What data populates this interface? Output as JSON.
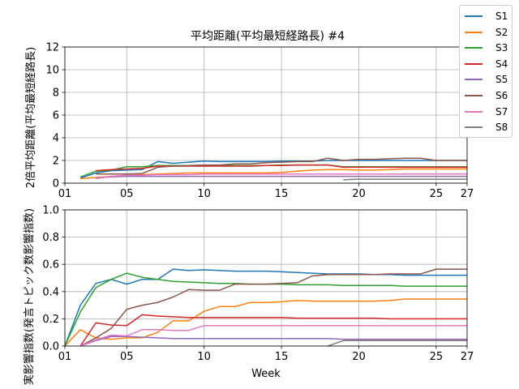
{
  "figure": {
    "title": "平均距離(平均最短経路長) #4",
    "legend": [
      {
        "name": "S1",
        "color": "#1f77b4"
      },
      {
        "name": "S2",
        "color": "#ff7f0e"
      },
      {
        "name": "S3",
        "color": "#2ca02c"
      },
      {
        "name": "S4",
        "color": "#d62728"
      },
      {
        "name": "S5",
        "color": "#9467bd"
      },
      {
        "name": "S6",
        "color": "#8c564b"
      },
      {
        "name": "S7",
        "color": "#e377c2"
      },
      {
        "name": "S8",
        "color": "#7f7f7f"
      }
    ]
  },
  "chart_data": [
    {
      "type": "line",
      "title": "平均距離(平均最短経路長) #4",
      "ylabel": "2倍平均距離(平均最短経路長)",
      "xlabel": "",
      "xlim": [
        1,
        27
      ],
      "ylim": [
        0,
        12
      ],
      "xticks": [
        1,
        5,
        10,
        15,
        20,
        25,
        27
      ],
      "xtick_labels": [
        "01",
        "05",
        "10",
        "15",
        "20",
        "25",
        "27"
      ],
      "yticks": [
        0,
        2,
        4,
        6,
        8,
        10,
        12
      ],
      "ytick_labels": [
        "0",
        "2",
        "4",
        "6",
        "8",
        "10",
        "12"
      ],
      "grid": true,
      "legend_position": "top-right, outside",
      "series": [
        {
          "name": "S1",
          "color": "#1f77b4",
          "x": [
            2,
            3,
            4,
            5,
            6,
            7,
            8,
            9,
            10,
            11,
            12,
            13,
            14,
            15,
            16,
            17,
            18,
            19,
            20,
            21,
            22,
            23,
            24,
            25,
            26,
            27
          ],
          "values": [
            0.45,
            0.9,
            1.1,
            1.15,
            1.2,
            1.9,
            1.75,
            1.85,
            1.95,
            1.9,
            1.9,
            1.9,
            1.9,
            1.95,
            1.95,
            1.95,
            2.0,
            2.0,
            2.0,
            2.0,
            2.0,
            2.0,
            2.0,
            2.0,
            2.0,
            2.0
          ]
        },
        {
          "name": "S2",
          "color": "#ff7f0e",
          "x": [
            2,
            3,
            4,
            5,
            6,
            7,
            8,
            9,
            10,
            11,
            12,
            13,
            14,
            15,
            16,
            17,
            18,
            19,
            20,
            21,
            22,
            23,
            24,
            25,
            26,
            27
          ],
          "values": [
            0.4,
            0.5,
            0.6,
            0.7,
            0.75,
            0.8,
            0.85,
            0.9,
            0.9,
            0.9,
            0.9,
            0.9,
            0.9,
            0.95,
            1.05,
            1.15,
            1.2,
            1.2,
            1.15,
            1.15,
            1.2,
            1.25,
            1.25,
            1.25,
            1.25,
            1.25
          ]
        },
        {
          "name": "S3",
          "color": "#2ca02c",
          "x": [
            2,
            3,
            4,
            5,
            6,
            7,
            8,
            9,
            10,
            11,
            12,
            13,
            14,
            15,
            16,
            17,
            18,
            19,
            20,
            21,
            22,
            23,
            24,
            25,
            26,
            27
          ],
          "values": [
            0.55,
            1.05,
            1.15,
            1.45,
            1.45,
            1.55,
            1.55,
            1.55,
            1.55,
            1.55,
            1.55,
            1.55,
            1.55,
            1.6,
            1.6,
            1.6,
            1.6,
            1.45,
            1.45,
            1.45,
            1.45,
            1.45,
            1.45,
            1.45,
            1.45,
            1.45
          ]
        },
        {
          "name": "S4",
          "color": "#d62728",
          "x": [
            3,
            4,
            5,
            6,
            7,
            8,
            9,
            10,
            11,
            12,
            13,
            14,
            15,
            16,
            17,
            18,
            19,
            20,
            21,
            22,
            23,
            24,
            25,
            26,
            27
          ],
          "values": [
            1.1,
            1.2,
            1.25,
            1.3,
            1.5,
            1.5,
            1.5,
            1.5,
            1.5,
            1.5,
            1.5,
            1.55,
            1.55,
            1.6,
            1.6,
            1.6,
            1.4,
            1.4,
            1.4,
            1.4,
            1.4,
            1.4,
            1.4,
            1.4,
            1.4
          ]
        },
        {
          "name": "S5",
          "color": "#9467bd",
          "x": [
            3,
            4,
            5,
            6,
            7,
            8,
            9,
            10,
            11,
            12,
            13,
            14,
            15,
            16,
            17,
            18,
            19,
            20,
            21,
            22,
            23,
            24,
            25,
            26,
            27
          ],
          "values": [
            0.45,
            0.55,
            0.6,
            0.6,
            0.6,
            0.6,
            0.6,
            0.6,
            0.6,
            0.6,
            0.6,
            0.6,
            0.6,
            0.6,
            0.6,
            0.6,
            0.6,
            0.6,
            0.6,
            0.6,
            0.6,
            0.6,
            0.6,
            0.6,
            0.6
          ]
        },
        {
          "name": "S6",
          "color": "#8c564b",
          "x": [
            3,
            4,
            5,
            6,
            7,
            8,
            9,
            10,
            11,
            12,
            13,
            14,
            15,
            16,
            17,
            18,
            19,
            20,
            21,
            22,
            23,
            24,
            25,
            26,
            27
          ],
          "values": [
            0.8,
            0.8,
            0.8,
            0.85,
            1.4,
            1.5,
            1.55,
            1.6,
            1.6,
            1.7,
            1.7,
            1.8,
            1.85,
            1.9,
            1.9,
            2.2,
            2.0,
            2.1,
            2.1,
            2.15,
            2.2,
            2.2,
            2.0,
            2.0,
            2.0
          ]
        },
        {
          "name": "S7",
          "color": "#e377c2",
          "x": [
            3,
            4,
            5,
            6,
            7,
            8,
            9,
            10,
            11,
            12,
            13,
            14,
            15,
            16,
            17,
            18,
            19,
            20,
            21,
            22,
            23,
            24,
            25,
            26,
            27
          ],
          "values": [
            0.4,
            0.6,
            0.7,
            0.7,
            0.75,
            0.75,
            0.75,
            0.8,
            0.8,
            0.8,
            0.8,
            0.8,
            0.8,
            0.8,
            0.8,
            0.8,
            0.8,
            0.8,
            0.8,
            0.8,
            0.8,
            0.8,
            0.8,
            0.8,
            0.8
          ]
        },
        {
          "name": "S8",
          "color": "#7f7f7f",
          "x": [
            19,
            20,
            21,
            22,
            23,
            24,
            25,
            26,
            27
          ],
          "values": [
            0.3,
            0.35,
            0.35,
            0.35,
            0.35,
            0.35,
            0.35,
            0.35,
            0.35
          ]
        }
      ]
    },
    {
      "type": "line",
      "title": "",
      "ylabel": "実影響指数(発言トピック数影響指数)",
      "xlabel": "Week",
      "xlim": [
        1,
        27
      ],
      "ylim": [
        0,
        1.0
      ],
      "xticks": [
        1,
        5,
        10,
        15,
        20,
        25,
        27
      ],
      "xtick_labels": [
        "01",
        "05",
        "10",
        "15",
        "20",
        "25",
        "27"
      ],
      "yticks": [
        0,
        0.2,
        0.4,
        0.6,
        0.8,
        1.0
      ],
      "ytick_labels": [
        "0.0",
        "0.2",
        "0.4",
        "0.6",
        "0.8",
        "1.0"
      ],
      "grid": true,
      "series": [
        {
          "name": "S1",
          "color": "#1f77b4",
          "x": [
            1,
            2,
            3,
            4,
            5,
            6,
            7,
            8,
            9,
            10,
            11,
            12,
            13,
            14,
            15,
            16,
            17,
            18,
            19,
            20,
            21,
            22,
            23,
            24,
            25,
            26,
            27
          ],
          "values": [
            0.0,
            0.3,
            0.46,
            0.49,
            0.455,
            0.49,
            0.49,
            0.565,
            0.555,
            0.56,
            0.555,
            0.55,
            0.55,
            0.55,
            0.545,
            0.54,
            0.535,
            0.53,
            0.53,
            0.53,
            0.525,
            0.525,
            0.52,
            0.52,
            0.52,
            0.52,
            0.52
          ]
        },
        {
          "name": "S2",
          "color": "#ff7f0e",
          "x": [
            1,
            2,
            3,
            4,
            5,
            6,
            7,
            8,
            9,
            10,
            11,
            12,
            13,
            14,
            15,
            16,
            17,
            18,
            19,
            20,
            21,
            22,
            23,
            24,
            25,
            26,
            27
          ],
          "values": [
            0.0,
            0.12,
            0.06,
            0.05,
            0.06,
            0.06,
            0.1,
            0.185,
            0.185,
            0.255,
            0.29,
            0.29,
            0.32,
            0.32,
            0.325,
            0.335,
            0.33,
            0.33,
            0.33,
            0.33,
            0.33,
            0.335,
            0.345,
            0.345,
            0.345,
            0.345,
            0.345
          ]
        },
        {
          "name": "S3",
          "color": "#2ca02c",
          "x": [
            1,
            2,
            3,
            4,
            5,
            6,
            7,
            8,
            9,
            10,
            11,
            12,
            13,
            14,
            15,
            16,
            17,
            18,
            19,
            20,
            21,
            22,
            23,
            24,
            25,
            26,
            27
          ],
          "values": [
            0.0,
            0.25,
            0.43,
            0.49,
            0.535,
            0.505,
            0.49,
            0.475,
            0.47,
            0.465,
            0.46,
            0.46,
            0.455,
            0.455,
            0.455,
            0.45,
            0.45,
            0.45,
            0.445,
            0.445,
            0.445,
            0.445,
            0.44,
            0.44,
            0.44,
            0.44,
            0.44
          ]
        },
        {
          "name": "S4",
          "color": "#d62728",
          "x": [
            2,
            3,
            4,
            5,
            6,
            7,
            8,
            9,
            10,
            11,
            12,
            13,
            14,
            15,
            16,
            17,
            18,
            19,
            20,
            21,
            22,
            23,
            24,
            25,
            26,
            27
          ],
          "values": [
            0.0,
            0.17,
            0.155,
            0.15,
            0.23,
            0.22,
            0.215,
            0.21,
            0.21,
            0.21,
            0.21,
            0.21,
            0.21,
            0.21,
            0.205,
            0.205,
            0.205,
            0.205,
            0.205,
            0.205,
            0.2,
            0.2,
            0.2,
            0.2,
            0.2,
            0.2
          ]
        },
        {
          "name": "S5",
          "color": "#9467bd",
          "x": [
            2,
            3,
            4,
            5,
            6,
            7,
            8,
            9,
            10,
            11,
            12,
            13,
            14,
            15,
            16,
            17,
            18,
            19,
            20,
            21,
            22,
            23,
            24,
            25,
            26,
            27
          ],
          "values": [
            0.0,
            0.04,
            0.07,
            0.07,
            0.065,
            0.06,
            0.055,
            0.055,
            0.055,
            0.055,
            0.055,
            0.055,
            0.055,
            0.055,
            0.055,
            0.055,
            0.055,
            0.05,
            0.05,
            0.05,
            0.05,
            0.05,
            0.05,
            0.05,
            0.05,
            0.05
          ]
        },
        {
          "name": "S6",
          "color": "#8c564b",
          "x": [
            2,
            3,
            4,
            5,
            6,
            7,
            8,
            9,
            10,
            11,
            12,
            13,
            14,
            15,
            16,
            17,
            18,
            19,
            20,
            21,
            22,
            23,
            24,
            25,
            26,
            27
          ],
          "values": [
            0.0,
            0.06,
            0.13,
            0.27,
            0.3,
            0.32,
            0.36,
            0.415,
            0.41,
            0.41,
            0.455,
            0.455,
            0.455,
            0.46,
            0.465,
            0.515,
            0.525,
            0.525,
            0.525,
            0.525,
            0.53,
            0.53,
            0.53,
            0.565,
            0.565,
            0.565
          ]
        },
        {
          "name": "S7",
          "color": "#e377c2",
          "x": [
            2,
            3,
            4,
            5,
            6,
            7,
            8,
            9,
            10,
            11,
            12,
            13,
            14,
            15,
            16,
            17,
            18,
            19,
            20,
            21,
            22,
            23,
            24,
            25,
            26,
            27
          ],
          "values": [
            0.0,
            0.045,
            0.08,
            0.075,
            0.12,
            0.12,
            0.115,
            0.115,
            0.15,
            0.15,
            0.15,
            0.15,
            0.15,
            0.15,
            0.15,
            0.15,
            0.15,
            0.15,
            0.15,
            0.15,
            0.15,
            0.15,
            0.15,
            0.15,
            0.15,
            0.15
          ]
        },
        {
          "name": "S8",
          "color": "#7f7f7f",
          "x": [
            18,
            19,
            20,
            21,
            22,
            23,
            24,
            25,
            26,
            27
          ],
          "values": [
            0.0,
            0.04,
            0.04,
            0.04,
            0.04,
            0.04,
            0.04,
            0.04,
            0.04,
            0.04
          ]
        }
      ]
    }
  ]
}
